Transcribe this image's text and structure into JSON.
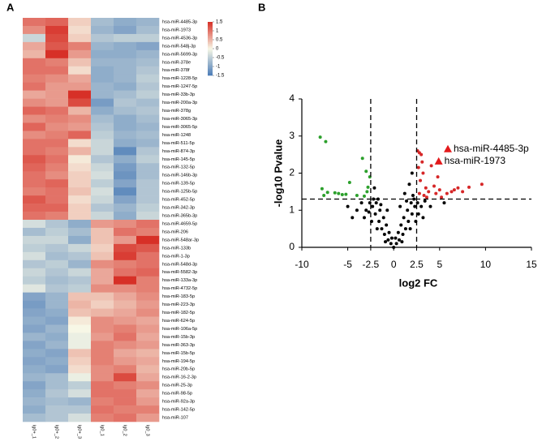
{
  "chart_data": [
    {
      "type": "heatmap",
      "panel": "A",
      "rows": [
        "hsa-miR-4485-3p",
        "hsa-miR-1973",
        "hsa-miR-4536-3p",
        "hsa-miR-548j-3p",
        "hsa-miR-5699-3p",
        "hsa-miR-378e",
        "hsa-miR-378f",
        "hsa-miR-1228-5p",
        "hsa-miR-1247-5p",
        "hsa-miR-33b-3p",
        "hsa-miR-200a-3p",
        "hsa-miR-378g",
        "hsa-miR-3065-3p",
        "hsa-miR-3065-5p",
        "hsa-miR-1248",
        "hsa-miR-511-5p",
        "hsa-miR-874-3p",
        "hsa-miR-145-5p",
        "hsa-miR-132-5p",
        "hsa-miR-146b-3p",
        "hsa-miR-139-5p",
        "hsa-miR-125b-5p",
        "hsa-miR-452-5p",
        "hsa-miR-342-3p",
        "hsa-miR-365b-3p",
        "hsa-miR-4659-5p",
        "hsa-miR-206",
        "hsa-miR-548ar-3p",
        "hsa-miR-133b",
        "hsa-miR-1-3p",
        "hsa-miR-548d-3p",
        "hsa-miR-5582-3p",
        "hsa-miR-133a-3p",
        "hsa-miR-4732-5p",
        "hsa-miR-183-5p",
        "hsa-miR-223-3p",
        "hsa-miR-182-5p",
        "hsa-miR-624-5p",
        "hsa-miR-106a-5p",
        "hsa-miR-15b-3p",
        "hsa-miR-363-3p",
        "hsa-miR-15b-5p",
        "hsa-miR-194-5p",
        "hsa-miR-20b-5p",
        "hsa-miR-16-2-3p",
        "hsa-miR-25-3p",
        "hsa-miR-98-5p",
        "hsa-miR-92a-3p",
        "hsa-miR-142-5p",
        "hsa-miR-107"
      ],
      "columns": [
        "lg0+_1",
        "lg0+_2",
        "lg0+_3",
        "lg0_1",
        "lg0_2",
        "lg0_3"
      ],
      "values": [
        [
          1.0,
          1.1,
          0.3,
          -0.7,
          -0.9,
          -0.8
        ],
        [
          0.8,
          1.4,
          0.2,
          -0.8,
          -1.0,
          -0.7
        ],
        [
          -0.4,
          1.3,
          0.3,
          -0.6,
          -0.5,
          -0.5
        ],
        [
          0.6,
          1.2,
          0.9,
          -0.8,
          -0.9,
          -1.0
        ],
        [
          0.5,
          1.5,
          0.7,
          -0.9,
          -0.9,
          -0.8
        ],
        [
          1.0,
          0.9,
          0.4,
          -0.8,
          -0.8,
          -0.7
        ],
        [
          1.0,
          1.0,
          0.2,
          -0.9,
          -0.8,
          -0.6
        ],
        [
          0.9,
          0.8,
          0.6,
          -0.9,
          -0.8,
          -0.5
        ],
        [
          1.0,
          0.7,
          0.7,
          -0.8,
          -0.9,
          -0.6
        ],
        [
          0.6,
          0.7,
          1.5,
          -0.8,
          -0.7,
          -0.5
        ],
        [
          0.8,
          0.7,
          1.3,
          -1.1,
          -0.6,
          -0.7
        ],
        [
          1.1,
          1.0,
          0.5,
          -0.9,
          -0.7,
          -0.6
        ],
        [
          0.8,
          0.9,
          0.8,
          -0.7,
          -0.9,
          -0.7
        ],
        [
          1.1,
          0.8,
          0.7,
          -0.6,
          -0.9,
          -0.8
        ],
        [
          0.8,
          0.9,
          1.1,
          -0.5,
          -0.8,
          -0.7
        ],
        [
          1.0,
          1.0,
          0.2,
          -0.4,
          -0.9,
          -0.8
        ],
        [
          1.0,
          0.9,
          0.5,
          -0.4,
          -1.3,
          -0.6
        ],
        [
          1.2,
          1.0,
          0.1,
          -0.6,
          -0.9,
          -0.5
        ],
        [
          1.1,
          0.9,
          0.2,
          -0.4,
          -1.1,
          -0.7
        ],
        [
          1.0,
          0.8,
          0.3,
          -0.3,
          -1.2,
          -0.7
        ],
        [
          1.0,
          1.1,
          0.3,
          -0.5,
          -1.0,
          -0.6
        ],
        [
          0.9,
          1.0,
          0.4,
          -0.3,
          -1.3,
          -0.6
        ],
        [
          1.2,
          1.0,
          0.2,
          -0.4,
          -1.0,
          -0.6
        ],
        [
          1.1,
          1.1,
          0.3,
          -0.6,
          -0.8,
          -0.5
        ],
        [
          1.0,
          0.9,
          0.3,
          -0.4,
          -0.9,
          -0.4
        ],
        [
          -0.3,
          -0.6,
          -0.9,
          0.7,
          0.8,
          1.0
        ],
        [
          -0.7,
          -0.5,
          -0.7,
          0.4,
          1.0,
          0.9
        ],
        [
          -0.4,
          -0.4,
          -0.9,
          0.4,
          0.7,
          1.5
        ],
        [
          -0.5,
          -0.6,
          -0.4,
          0.3,
          1.3,
          1.2
        ],
        [
          -0.3,
          -0.7,
          -0.6,
          0.4,
          1.4,
          1.0
        ],
        [
          -0.6,
          -0.5,
          -0.8,
          0.8,
          0.9,
          1.0
        ],
        [
          -0.4,
          -0.6,
          -0.4,
          0.6,
          1.0,
          1.1
        ],
        [
          -0.5,
          -0.7,
          -0.6,
          0.6,
          1.5,
          0.9
        ],
        [
          -0.2,
          -0.6,
          -0.5,
          0.8,
          0.8,
          0.9
        ],
        [
          -1.0,
          -0.8,
          0.4,
          0.4,
          0.6,
          0.8
        ],
        [
          -1.1,
          -0.8,
          0.5,
          0.3,
          0.5,
          0.7
        ],
        [
          -1.0,
          -0.9,
          0.4,
          0.5,
          0.6,
          0.8
        ],
        [
          -0.9,
          -1.0,
          0.1,
          0.8,
          0.7,
          0.6
        ],
        [
          -1.0,
          -0.8,
          0.0,
          0.8,
          0.9,
          0.7
        ],
        [
          -0.8,
          -0.9,
          -0.1,
          0.7,
          1.0,
          0.6
        ],
        [
          -1.0,
          -0.8,
          -0.1,
          0.9,
          0.8,
          0.7
        ],
        [
          -0.9,
          -1.0,
          0.4,
          0.9,
          0.6,
          0.5
        ],
        [
          -1.0,
          -0.9,
          0.3,
          0.9,
          0.7,
          0.6
        ],
        [
          -0.9,
          -1.0,
          0.2,
          0.8,
          0.9,
          0.5
        ],
        [
          -0.8,
          -0.7,
          -0.1,
          0.8,
          1.3,
          0.6
        ],
        [
          -1.0,
          -0.7,
          -0.5,
          1.0,
          0.9,
          0.8
        ],
        [
          -0.9,
          -0.6,
          -0.3,
          1.0,
          1.0,
          0.6
        ],
        [
          -0.8,
          -0.7,
          -0.8,
          0.9,
          1.0,
          0.7
        ],
        [
          -0.9,
          -0.6,
          -0.6,
          1.0,
          0.9,
          0.9
        ],
        [
          -0.7,
          -0.6,
          -0.3,
          0.9,
          1.0,
          0.7
        ]
      ],
      "colorbar": {
        "lim": [
          -1.5,
          1.5
        ],
        "ticks": [
          1.5,
          1,
          0.5,
          0,
          -0.5,
          -1,
          -1.5
        ],
        "colors": [
          "#4a7bb7",
          "#f7f7e6",
          "#d73027"
        ]
      }
    },
    {
      "type": "scatter",
      "panel": "B",
      "xlabel": "log2 FC",
      "ylabel": "-log10 Pvalue",
      "xlim": [
        -10,
        15
      ],
      "ylim": [
        0,
        4
      ],
      "xticks": [
        -10,
        -5,
        -2.5,
        0,
        2.5,
        5,
        10,
        15
      ],
      "yticks": [
        0,
        1,
        2,
        3,
        4
      ],
      "thresholds": {
        "x": [
          -2.5,
          2.5
        ],
        "y": 1.3
      },
      "series": [
        {
          "color": "#000000",
          "x": [
            0,
            0.3,
            -0.3,
            0.6,
            -0.6,
            1,
            -1,
            1.3,
            -1.3,
            1.6,
            -1.6,
            2,
            -2,
            2.3,
            -2.3,
            2.6,
            -2.6,
            0.5,
            -0.5,
            0.8,
            -0.8,
            1.1,
            -1.1,
            1.5,
            -1.5,
            1.9,
            -1.9,
            2.2,
            -2.2,
            0.2,
            -0.2,
            1.4,
            -1.4,
            2.4,
            -2.4,
            3,
            -3,
            3.4,
            -3.5,
            -4,
            4,
            -4.5,
            -5,
            2.7,
            -2.7,
            1.8,
            -1.8,
            0.9,
            -0.9,
            2.1,
            -2.1,
            1.2,
            0.7,
            -0.7,
            1.7,
            2,
            -1.7,
            3.2,
            -3.2,
            5.5
          ],
          "y": [
            0,
            0.1,
            0.1,
            0.2,
            0.2,
            0.35,
            0.35,
            0.5,
            0.5,
            0.7,
            0.7,
            0.9,
            0.9,
            1.1,
            1.1,
            1.2,
            1.2,
            0.4,
            0.4,
            0.6,
            0.6,
            0.8,
            0.8,
            1.0,
            1.0,
            1.2,
            1.2,
            1.3,
            1.3,
            0.25,
            0.25,
            1.25,
            1.15,
            0.7,
            0.7,
            1.1,
            1.0,
            1.25,
            1.2,
            1.0,
            1.1,
            0.8,
            1.1,
            0.9,
            0.95,
            0.5,
            0.5,
            0.15,
            0.15,
            1.4,
            1.6,
            1.45,
            1.1,
            1.0,
            1.7,
            2.0,
            1.3,
            0.8,
            0.8,
            1.2
          ]
        },
        {
          "color": "#2ca02c",
          "x": [
            -8,
            -7.4,
            -7.8,
            -7.2,
            -6.4,
            -6.0,
            -5.6,
            -5.2,
            -4.8,
            -3.4,
            -3.0,
            -2.8,
            -2.6,
            -3.2,
            -2.9,
            -4,
            -7.6
          ],
          "y": [
            2.97,
            2.85,
            1.58,
            1.48,
            1.47,
            1.45,
            1.42,
            1.43,
            1.75,
            2.4,
            2.05,
            1.62,
            1.9,
            1.38,
            1.5,
            1.4,
            1.4
          ]
        },
        {
          "color": "#d62728",
          "x": [
            2.8,
            3,
            3.1,
            2.7,
            3.2,
            2.9,
            3.5,
            2.8,
            3.3,
            3.8,
            4.1,
            4.4,
            4.6,
            5.0,
            5.2,
            5.8,
            6.3,
            6.6,
            7,
            7.5,
            8.2,
            9.6,
            4.8,
            3.6,
            2.6
          ],
          "y": [
            2.55,
            2.5,
            2.3,
            2.15,
            2.0,
            1.8,
            1.6,
            1.45,
            1.4,
            1.5,
            2.2,
            1.65,
            1.45,
            1.55,
            1.35,
            1.45,
            1.5,
            1.55,
            1.6,
            1.5,
            1.62,
            1.7,
            1.9,
            1.35,
            2.6
          ]
        }
      ],
      "annotations": [
        {
          "x": 5.9,
          "y": 2.65,
          "text": "hsa-miR-4485-3p",
          "color": "#e31a1c"
        },
        {
          "x": 4.9,
          "y": 2.32,
          "text": "hsa-miR-1973",
          "color": "#e31a1c"
        }
      ]
    }
  ]
}
